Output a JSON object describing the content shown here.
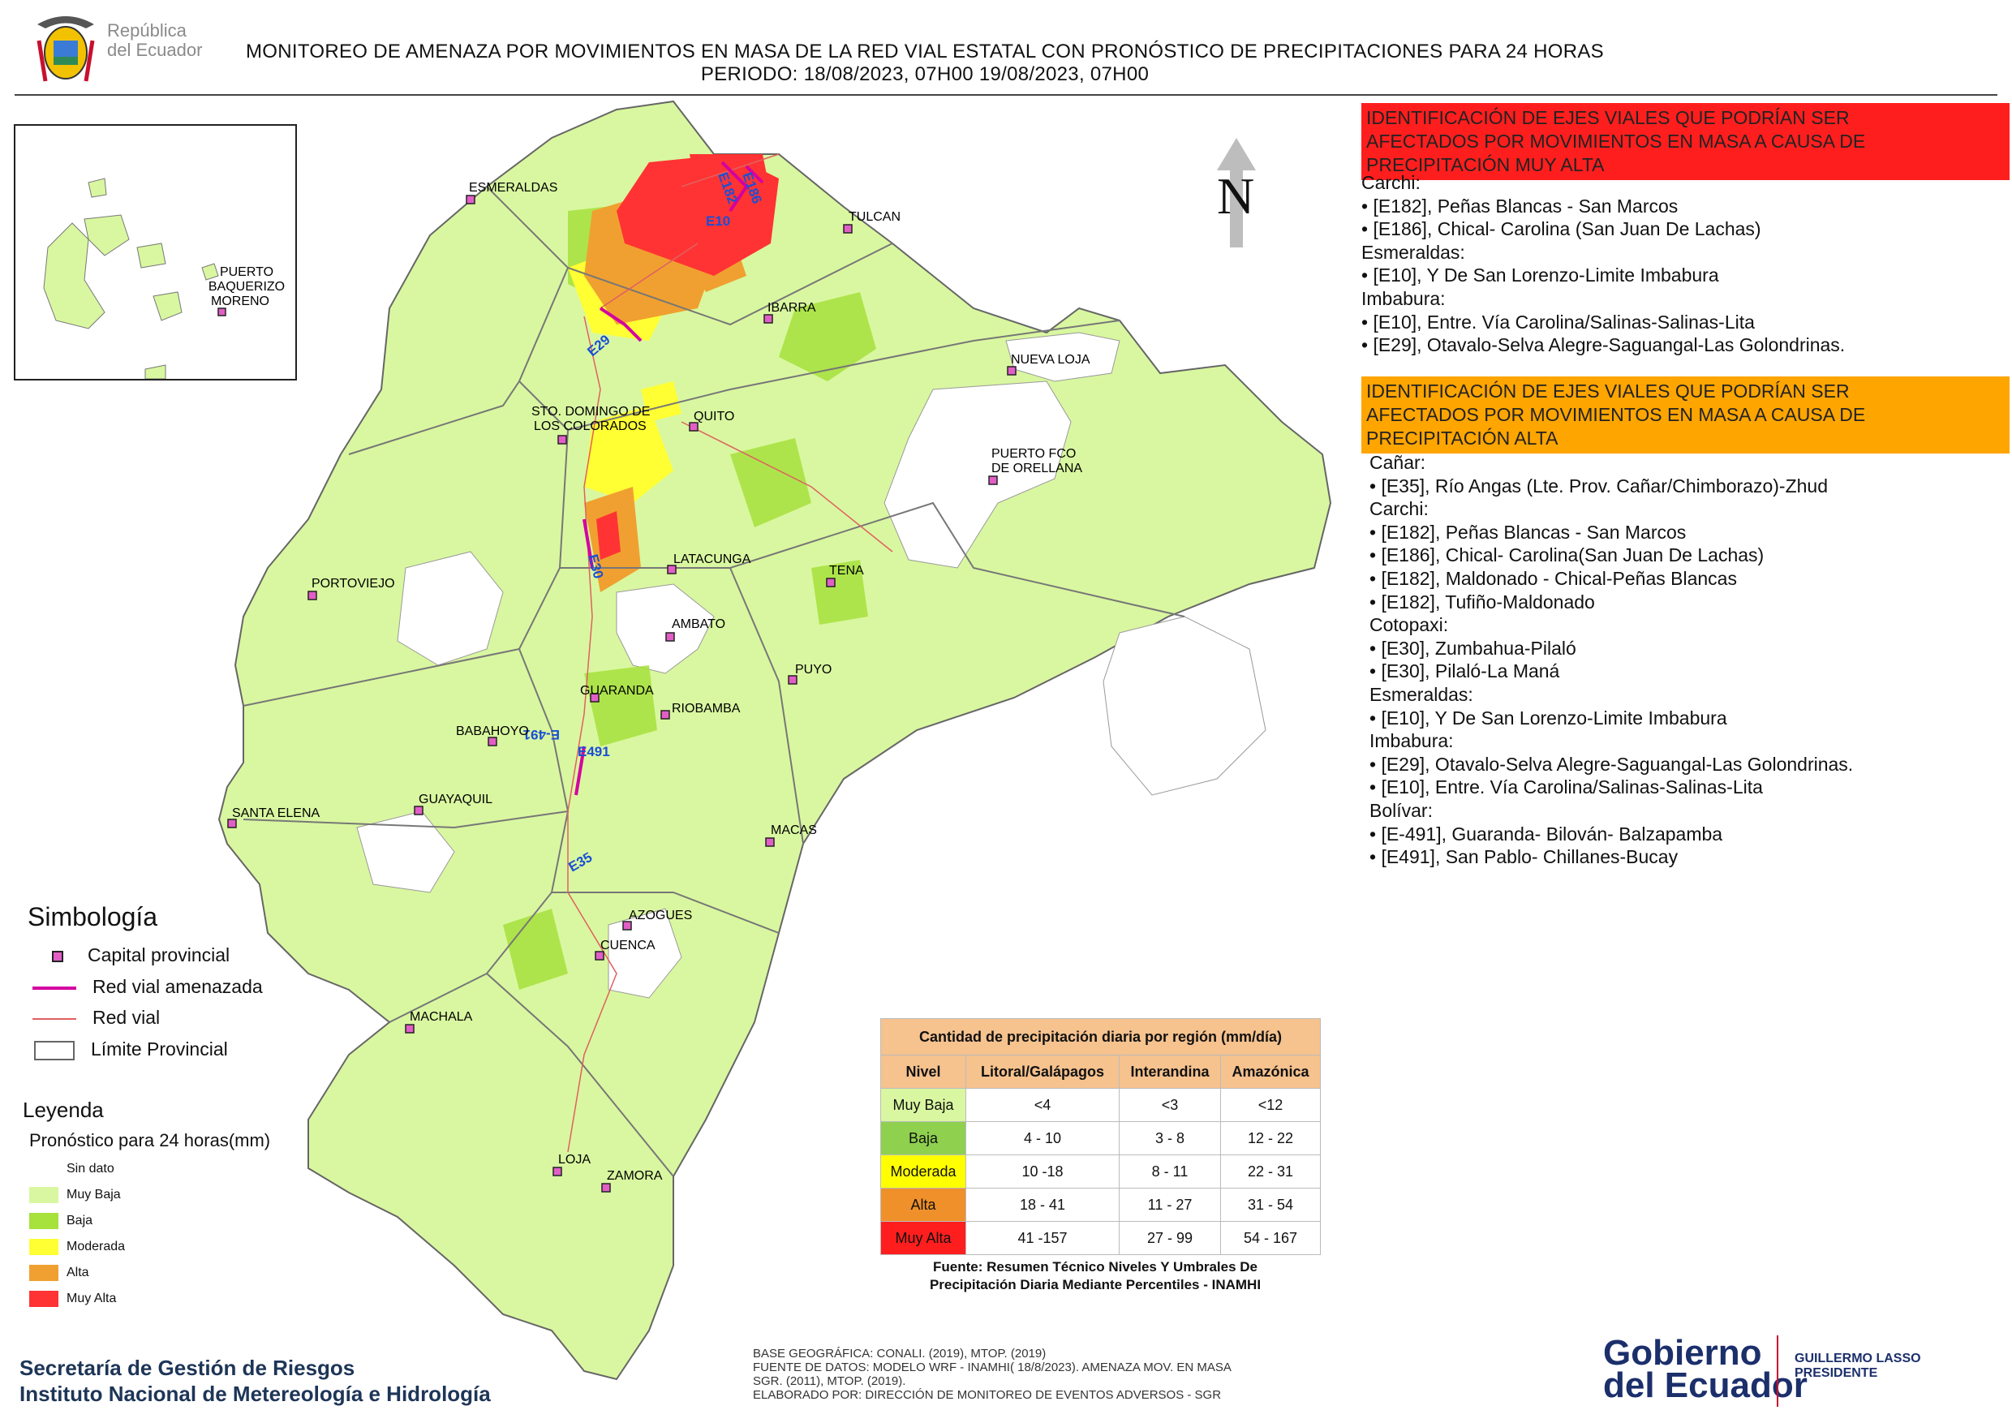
{
  "header": {
    "logo_text_line1": "República",
    "logo_text_line2": "del Ecuador",
    "title_line1": "MONITOREO DE AMENAZA POR MOVIMIENTOS EN MASA DE LA RED VIAL  ESTATAL  CON PRONÓSTICO  DE  PRECIPITACIONES PARA 24 HORAS",
    "title_line2": "PERIODO: 18/08/2023, 07H00 19/08/2023, 07H00"
  },
  "map": {
    "north_label": "N",
    "inset_cities": [
      {
        "label_lines": [
          "PUERTO",
          "BAQUERIZO",
          "MORENO"
        ]
      }
    ],
    "cities": [
      {
        "name": "ESMERALDAS"
      },
      {
        "name": "TULCAN"
      },
      {
        "name": "IBARRA"
      },
      {
        "name": "NUEVA LOJA"
      },
      {
        "name": "STO. DOMINGO DE"
      },
      {
        "name": "LOS COLORADOS"
      },
      {
        "name": "QUITO"
      },
      {
        "name": "PUERTO FCO"
      },
      {
        "name": "DE ORELLANA"
      },
      {
        "name": "PORTOVIEJO"
      },
      {
        "name": "LATACUNGA"
      },
      {
        "name": "TENA"
      },
      {
        "name": "AMBATO"
      },
      {
        "name": "PUYO"
      },
      {
        "name": "GUARANDA"
      },
      {
        "name": "RIOBAMBA"
      },
      {
        "name": "BABAHOYO"
      },
      {
        "name": "GUAYAQUIL"
      },
      {
        "name": "SANTA ELENA"
      },
      {
        "name": "MACAS"
      },
      {
        "name": "AZOGUES"
      },
      {
        "name": "CUENCA"
      },
      {
        "name": "MACHALA"
      },
      {
        "name": "LOJA"
      },
      {
        "name": "ZAMORA"
      }
    ],
    "road_labels": [
      "E182",
      "E186",
      "E10",
      "E29",
      "E30",
      "E-491",
      "E491",
      "E35"
    ]
  },
  "panel_very_high": {
    "heading": "IDENTIFICACIÓN DE EJES VIALES QUE PODRÍAN SER AFECTADOS POR MOVIMIENTOS EN MASA A CAUSA DE PRECIPITACIÓN MUY ALTA",
    "heading_lines": [
      "IDENTIFICACIÓN DE EJES VIALES QUE PODRÍAN SER",
      "AFECTADOS POR MOVIMIENTOS EN MASA A CAUSA DE",
      "PRECIPITACIÓN MUY ALTA"
    ],
    "lines": [
      "Carchi:",
      "• [E182], Peñas Blancas - San Marcos",
      "• [E186], Chical- Carolina (San Juan De Lachas)",
      "Esmeraldas:",
      "• [E10], Y De San Lorenzo-Limite Imbabura",
      "Imbabura:",
      "• [E10], Entre. Vía Carolina/Salinas-Salinas-Lita",
      "• [E29], Otavalo-Selva Alegre-Saguangal-Las Golondrinas."
    ]
  },
  "panel_high": {
    "heading_lines": [
      "IDENTIFICACIÓN DE EJES VIALES QUE PODRÍAN SER",
      "AFECTADOS POR MOVIMIENTOS EN MASA A CAUSA DE",
      "PRECIPITACIÓN  ALTA"
    ],
    "lines": [
      "Cañar:",
      "• [E35], Río Angas (Lte. Prov. Cañar/Chimborazo)-Zhud",
      "Carchi:",
      "• [E182], Peñas Blancas - San Marcos",
      "• [E186], Chical- Carolina(San Juan De Lachas)",
      "• [E182], Maldonado - Chical-Peñas Blancas",
      "• [E182], Tufiño-Maldonado",
      "Cotopaxi:",
      "• [E30], Zumbahua-Pilaló",
      "• [E30], Pilaló-La Maná",
      "Esmeraldas:",
      "• [E10], Y De San Lorenzo-Limite Imbabura",
      "Imbabura:",
      "• [E29], Otavalo-Selva Alegre-Saguangal-Las Golondrinas.",
      "• [E10], Entre. Vía Carolina/Salinas-Salinas-Lita",
      "Bolívar:",
      "• [E-491], Guaranda- Bilován- Balzapamba",
      "• [E491], San Pablo- Chillanes-Bucay"
    ]
  },
  "simbologia": {
    "title": "Simbología",
    "items": [
      "Capital provincial",
      "Red vial amenazada",
      "Red vial",
      "Límite Provincial"
    ]
  },
  "leyenda": {
    "title": "Leyenda",
    "subtitle": "Pronóstico para 24 horas(mm)",
    "items": [
      {
        "label": "Sin dato",
        "color": "#ffffff"
      },
      {
        "label": "Muy Baja",
        "color": "#d9f7a0"
      },
      {
        "label": "Baja",
        "color": "#a6e13c"
      },
      {
        "label": "Moderada",
        "color": "#ffff33"
      },
      {
        "label": "Alta",
        "color": "#f0a030"
      },
      {
        "label": "Muy Alta",
        "color": "#ff3333"
      }
    ]
  },
  "precip_table": {
    "title": "Cantidad de precipitación diaria por región (mm/día)",
    "headers": [
      "Nivel",
      "Litoral/Galápagos",
      "Interandina",
      "Amazónica"
    ],
    "rows": [
      {
        "level": "Muy Baja",
        "color": "#d9f7a0",
        "litoral": "<4",
        "interandina": "<3",
        "amazonica": "<12"
      },
      {
        "level": "Baja",
        "color": "#8fd14f",
        "litoral": "4 - 10",
        "interandina": "3 - 8",
        "amazonica": "12 - 22"
      },
      {
        "level": "Moderada",
        "color": "#ffff00",
        "litoral": "10 -18",
        "interandina": "8 - 11",
        "amazonica": "22 - 31"
      },
      {
        "level": "Alta",
        "color": "#f0902a",
        "litoral": "18 - 41",
        "interandina": "11 - 27",
        "amazonica": "31 - 54"
      },
      {
        "level": "Muy Alta",
        "color": "#ff1e1e",
        "litoral": "41 -157",
        "interandina": "27 - 99",
        "amazonica": "54 - 167"
      }
    ],
    "source_line1": "Fuente: Resumen Técnico Niveles Y Umbrales De",
    "source_line2": "Precipitación Diaria Mediante Percentiles - INAMHI"
  },
  "footer": {
    "org_line1": "Secretaría de Gestión de Riesgos",
    "org_line2": "Instituto Nacional de Metereología e Hidrología",
    "credits": [
      "BASE GEOGRÁFICA: CONALI. (2019), MTOP. (2019)",
      "FUENTE DE DATOS: MODELO WRF - INAMHI( 18/8/2023).  AMENAZA MOV. EN MASA",
      "SGR. (2011), MTOP. (2019).",
      "ELABORADO POR: DIRECCIÓN DE MONITOREO DE EVENTOS ADVERSOS - SGR"
    ],
    "gob_line1": "Gobierno",
    "gob_line2": "del Ecuador",
    "president_line1": "GUILLERMO LASSO",
    "president_line2": "PRESIDENTE"
  }
}
